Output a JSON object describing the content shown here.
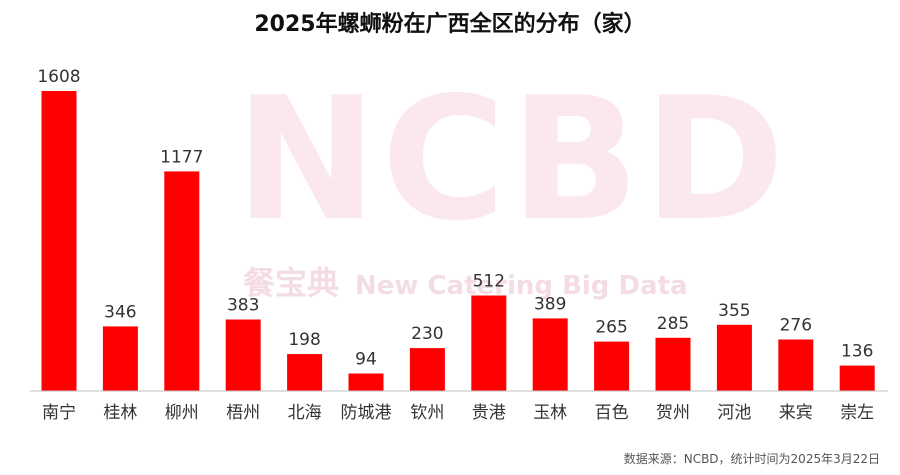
{
  "title": "2025年螺蛳粉在广西全区的分布（家）",
  "watermark": {
    "logo": "NCBD",
    "cn": "餐宝典",
    "en": "New Catering Big Data"
  },
  "source": "数据来源：NCBD，统计时间为2025年3月22日",
  "colors": {
    "bar": "#ff0000",
    "axis": "#bfbfbf",
    "label": "#333333"
  },
  "chart_data": {
    "type": "bar",
    "title": "2025年螺蛳粉在广西全区的分布（家）",
    "categories": [
      "南宁",
      "桂林",
      "柳州",
      "梧州",
      "北海",
      "防城港",
      "钦州",
      "贵港",
      "玉林",
      "百色",
      "贺州",
      "河池",
      "来宾",
      "崇左"
    ],
    "values": [
      1608,
      346,
      1177,
      383,
      198,
      94,
      230,
      512,
      389,
      265,
      285,
      355,
      276,
      136
    ],
    "data_labels": true,
    "grid": false,
    "ylim": [
      0,
      1608
    ]
  }
}
